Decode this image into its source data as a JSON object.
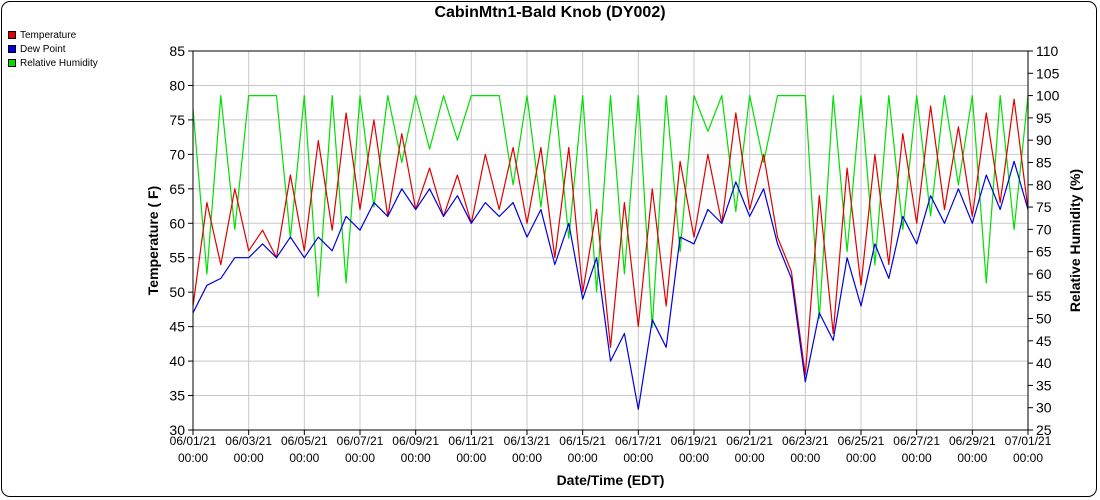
{
  "chart_data": {
    "type": "line",
    "title": "CabinMtn1-Bald Knob (DY002)",
    "xlabel": "Date/Time (EDT)",
    "ylabel": "Temperature ( F)",
    "y2label": "Relative Humidity (%)",
    "x_ticks": [
      {
        "d": "06/01/21",
        "t": "00:00"
      },
      {
        "d": "06/03/21",
        "t": "00:00"
      },
      {
        "d": "06/05/21",
        "t": "00:00"
      },
      {
        "d": "06/07/21",
        "t": "00:00"
      },
      {
        "d": "06/09/21",
        "t": "00:00"
      },
      {
        "d": "06/11/21",
        "t": "00:00"
      },
      {
        "d": "06/13/21",
        "t": "00:00"
      },
      {
        "d": "06/15/21",
        "t": "00:00"
      },
      {
        "d": "06/17/21",
        "t": "00:00"
      },
      {
        "d": "06/19/21",
        "t": "00:00"
      },
      {
        "d": "06/21/21",
        "t": "00:00"
      },
      {
        "d": "06/23/21",
        "t": "00:00"
      },
      {
        "d": "06/25/21",
        "t": "00:00"
      },
      {
        "d": "06/27/21",
        "t": "00:00"
      },
      {
        "d": "06/29/21",
        "t": "00:00"
      },
      {
        "d": "07/01/21",
        "t": "00:00"
      }
    ],
    "xlim": [
      "06/01/21 00:00",
      "07/01/21 00:00"
    ],
    "ylim": [
      30,
      85
    ],
    "y_ticks": [
      30,
      35,
      40,
      45,
      50,
      55,
      60,
      65,
      70,
      75,
      80,
      85
    ],
    "y2lim": [
      25,
      110
    ],
    "y2_ticks": [
      25,
      30,
      35,
      40,
      45,
      50,
      55,
      60,
      65,
      70,
      75,
      80,
      85,
      90,
      95,
      100,
      105,
      110
    ],
    "grid": true,
    "legend_position": "top-left",
    "series": [
      {
        "name": "Temperature",
        "color": "#e00000",
        "axis": "left",
        "x": [
          "06/01/21 00:00",
          "06/01/21 12:00",
          "06/02/21 00:00",
          "06/02/21 12:00",
          "06/03/21 00:00",
          "06/03/21 12:00",
          "06/04/21 00:00",
          "06/04/21 12:00",
          "06/05/21 00:00",
          "06/05/21 12:00",
          "06/06/21 00:00",
          "06/06/21 12:00",
          "06/07/21 00:00",
          "06/07/21 12:00",
          "06/08/21 00:00",
          "06/08/21 12:00",
          "06/09/21 00:00",
          "06/09/21 12:00",
          "06/10/21 00:00",
          "06/10/21 12:00",
          "06/11/21 00:00",
          "06/11/21 12:00",
          "06/12/21 00:00",
          "06/12/21 12:00",
          "06/13/21 00:00",
          "06/13/21 12:00",
          "06/14/21 00:00",
          "06/14/21 12:00",
          "06/15/21 00:00",
          "06/15/21 12:00",
          "06/16/21 00:00",
          "06/16/21 12:00",
          "06/17/21 00:00",
          "06/17/21 12:00",
          "06/18/21 00:00",
          "06/18/21 12:00",
          "06/19/21 00:00",
          "06/19/21 12:00",
          "06/20/21 00:00",
          "06/20/21 12:00",
          "06/21/21 00:00",
          "06/21/21 12:00",
          "06/22/21 00:00",
          "06/22/21 12:00",
          "06/23/21 00:00",
          "06/23/21 12:00",
          "06/24/21 00:00",
          "06/24/21 12:00",
          "06/25/21 00:00",
          "06/25/21 12:00",
          "06/26/21 00:00",
          "06/26/21 12:00",
          "06/27/21 00:00",
          "06/27/21 12:00",
          "06/28/21 00:00",
          "06/28/21 12:00",
          "06/29/21 00:00",
          "06/29/21 12:00",
          "06/30/21 00:00",
          "06/30/21 12:00",
          "07/01/21 00:00"
        ],
        "values": [
          48,
          63,
          54,
          65,
          56,
          59,
          55,
          67,
          56,
          72,
          59,
          76,
          62,
          75,
          61,
          73,
          62,
          68,
          61,
          67,
          60,
          70,
          62,
          71,
          60,
          71,
          55,
          71,
          50,
          62,
          42,
          63,
          45,
          65,
          48,
          69,
          58,
          70,
          60,
          76,
          62,
          70,
          58,
          53,
          38,
          64,
          44,
          68,
          51,
          70,
          54,
          73,
          60,
          77,
          62,
          74,
          61,
          76,
          63,
          78,
          62
        ]
      },
      {
        "name": "Dew Point",
        "color": "#0000e0",
        "axis": "left",
        "x": [
          "06/01/21 00:00",
          "06/01/21 12:00",
          "06/02/21 00:00",
          "06/02/21 12:00",
          "06/03/21 00:00",
          "06/03/21 12:00",
          "06/04/21 00:00",
          "06/04/21 12:00",
          "06/05/21 00:00",
          "06/05/21 12:00",
          "06/06/21 00:00",
          "06/06/21 12:00",
          "06/07/21 00:00",
          "06/07/21 12:00",
          "06/08/21 00:00",
          "06/08/21 12:00",
          "06/09/21 00:00",
          "06/09/21 12:00",
          "06/10/21 00:00",
          "06/10/21 12:00",
          "06/11/21 00:00",
          "06/11/21 12:00",
          "06/12/21 00:00",
          "06/12/21 12:00",
          "06/13/21 00:00",
          "06/13/21 12:00",
          "06/14/21 00:00",
          "06/14/21 12:00",
          "06/15/21 00:00",
          "06/15/21 12:00",
          "06/16/21 00:00",
          "06/16/21 12:00",
          "06/17/21 00:00",
          "06/17/21 12:00",
          "06/18/21 00:00",
          "06/18/21 12:00",
          "06/19/21 00:00",
          "06/19/21 12:00",
          "06/20/21 00:00",
          "06/20/21 12:00",
          "06/21/21 00:00",
          "06/21/21 12:00",
          "06/22/21 00:00",
          "06/22/21 12:00",
          "06/23/21 00:00",
          "06/23/21 12:00",
          "06/24/21 00:00",
          "06/24/21 12:00",
          "06/25/21 00:00",
          "06/25/21 12:00",
          "06/26/21 00:00",
          "06/26/21 12:00",
          "06/27/21 00:00",
          "06/27/21 12:00",
          "06/28/21 00:00",
          "06/28/21 12:00",
          "06/29/21 00:00",
          "06/29/21 12:00",
          "06/30/21 00:00",
          "06/30/21 12:00",
          "07/01/21 00:00"
        ],
        "values": [
          47,
          51,
          52,
          55,
          55,
          57,
          55,
          58,
          55,
          58,
          56,
          61,
          59,
          63,
          61,
          65,
          62,
          65,
          61,
          64,
          60,
          63,
          61,
          63,
          58,
          62,
          54,
          60,
          49,
          55,
          40,
          44,
          33,
          46,
          42,
          58,
          57,
          62,
          60,
          66,
          61,
          65,
          57,
          52,
          37,
          47,
          43,
          55,
          48,
          57,
          52,
          61,
          57,
          64,
          60,
          65,
          60,
          67,
          62,
          69,
          62
        ]
      },
      {
        "name": "Relative Humidity",
        "color": "#00e000",
        "axis": "right",
        "x": [
          "06/01/21 00:00",
          "06/01/21 12:00",
          "06/02/21 00:00",
          "06/02/21 12:00",
          "06/03/21 00:00",
          "06/03/21 12:00",
          "06/04/21 00:00",
          "06/04/21 12:00",
          "06/05/21 00:00",
          "06/05/21 12:00",
          "06/06/21 00:00",
          "06/06/21 12:00",
          "06/07/21 00:00",
          "06/07/21 12:00",
          "06/08/21 00:00",
          "06/08/21 12:00",
          "06/09/21 00:00",
          "06/09/21 12:00",
          "06/10/21 00:00",
          "06/10/21 12:00",
          "06/11/21 00:00",
          "06/11/21 12:00",
          "06/12/21 00:00",
          "06/12/21 12:00",
          "06/13/21 00:00",
          "06/13/21 12:00",
          "06/14/21 00:00",
          "06/14/21 12:00",
          "06/15/21 00:00",
          "06/15/21 12:00",
          "06/16/21 00:00",
          "06/16/21 12:00",
          "06/17/21 00:00",
          "06/17/21 12:00",
          "06/18/21 00:00",
          "06/18/21 12:00",
          "06/19/21 00:00",
          "06/19/21 12:00",
          "06/20/21 00:00",
          "06/20/21 12:00",
          "06/21/21 00:00",
          "06/21/21 12:00",
          "06/22/21 00:00",
          "06/22/21 12:00",
          "06/23/21 00:00",
          "06/23/21 12:00",
          "06/24/21 00:00",
          "06/24/21 12:00",
          "06/25/21 00:00",
          "06/25/21 12:00",
          "06/26/21 00:00",
          "06/26/21 12:00",
          "06/27/21 00:00",
          "06/27/21 12:00",
          "06/28/21 00:00",
          "06/28/21 12:00",
          "06/29/21 00:00",
          "06/29/21 12:00",
          "06/30/21 00:00",
          "06/30/21 12:00",
          "07/01/21 00:00"
        ],
        "values": [
          97,
          60,
          100,
          70,
          100,
          100,
          100,
          68,
          100,
          55,
          100,
          58,
          100,
          75,
          100,
          85,
          100,
          88,
          100,
          90,
          100,
          100,
          100,
          80,
          100,
          75,
          100,
          68,
          100,
          56,
          100,
          60,
          100,
          48,
          100,
          65,
          100,
          92,
          100,
          74,
          100,
          85,
          100,
          100,
          100,
          50,
          100,
          65,
          100,
          62,
          100,
          70,
          100,
          73,
          100,
          80,
          100,
          58,
          100,
          70,
          100
        ]
      }
    ]
  }
}
